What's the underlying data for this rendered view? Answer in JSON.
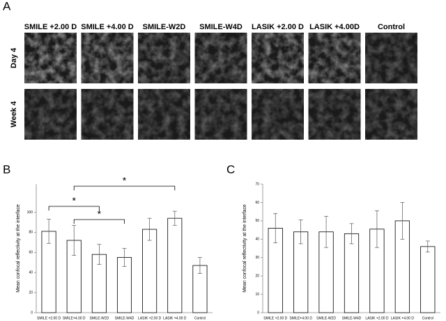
{
  "panel_a": {
    "label": "A",
    "columns": [
      "SMILE +2.00 D",
      "SMILE +4.00 D",
      "SMILE-W2D",
      "SMILE-W4D",
      "LASIK +2.00 D",
      "LASIK +4.00D",
      "Control"
    ],
    "rows": [
      "Day 4",
      "Week 4"
    ]
  },
  "chart_data": [
    {
      "type": "bar",
      "panel": "B",
      "y_label": "Mean confocal reflectivity at the interface",
      "categories": [
        "SMILE +2.00 D",
        "SMILE+4.00 D",
        "SMILE-W2D",
        "SMILE-W4D",
        "LASIK +2.00 D",
        "LASIK +4.00 D",
        "Control"
      ],
      "values": [
        81,
        72,
        58,
        55,
        83,
        94,
        47
      ],
      "errors": [
        12,
        15,
        10,
        9,
        11,
        7,
        8
      ],
      "color": "#ffffff",
      "ylim": [
        0,
        128
      ],
      "yticks": [
        0,
        20,
        40,
        60,
        80,
        100
      ],
      "brackets": [
        {
          "from": "SMILE+4.00 D",
          "to": "LASIK +4.00 D",
          "label": "*"
        },
        {
          "from": "SMILE +2.00 D",
          "to": "SMILE-W2D",
          "label": "*"
        },
        {
          "from": "SMILE+4.00 D",
          "to": "SMILE-W4D",
          "label": "*"
        }
      ]
    },
    {
      "type": "bar",
      "panel": "C",
      "y_label": "Mean confocal reflectivity at the interface",
      "categories": [
        "SMILE +2.00 D",
        "SMILE+4.00 D",
        "SMILE-W2D",
        "SMILE-W4D",
        "LASIK +2.00 D",
        "LASIK +4.00 D",
        "Control"
      ],
      "values": [
        46,
        44,
        44,
        43,
        45.5,
        50,
        36
      ],
      "errors": [
        8,
        6.5,
        8.5,
        5.5,
        10,
        10,
        3
      ],
      "color": "#ffffff",
      "ylim": [
        0,
        70
      ],
      "yticks": [
        0,
        10,
        20,
        30,
        40,
        50,
        60,
        70
      ],
      "brackets": []
    }
  ]
}
